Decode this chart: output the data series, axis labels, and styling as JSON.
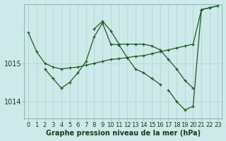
{
  "bg_color": "#cee9e9",
  "line_color": "#1a5c1a",
  "grid_color": "#b0d0d0",
  "title": "Graphe pression niveau de la mer (hPa)",
  "tick_fontsize": 6,
  "title_fontsize": 7,
  "xmin": -0.5,
  "xmax": 23.5,
  "ymin": 1013.55,
  "ymax": 1016.55,
  "yticks": [
    1014,
    1015
  ],
  "xticks": [
    0,
    1,
    2,
    3,
    4,
    5,
    6,
    7,
    8,
    9,
    10,
    11,
    12,
    13,
    14,
    15,
    16,
    17,
    18,
    19,
    20,
    21,
    22,
    23
  ],
  "lineA_x": [
    0,
    1,
    2,
    3,
    4,
    5,
    6,
    7,
    8,
    9,
    10,
    11,
    12,
    13,
    14,
    15,
    16,
    17,
    18,
    19,
    20,
    21,
    22,
    23
  ],
  "lineA_y": [
    1015.8,
    1015.3,
    1015.0,
    1014.9,
    1014.85,
    1014.88,
    1014.9,
    1014.95,
    1015.0,
    1015.05,
    1015.1,
    1015.12,
    1015.15,
    1015.18,
    1015.2,
    1015.25,
    1015.3,
    1015.35,
    1015.4,
    1015.45,
    1015.5,
    1016.4,
    1016.45,
    1016.5
  ],
  "lineB_x": [
    2,
    3,
    4,
    5,
    6,
    7,
    8,
    9,
    10,
    11,
    12,
    13,
    14,
    15,
    16
  ],
  "lineB_y": [
    1014.85,
    1014.6,
    1014.35,
    1014.5,
    1014.75,
    1015.05,
    1015.7,
    1016.05,
    1015.5,
    1015.48,
    1015.15,
    1014.85,
    1014.75,
    1014.6,
    1014.45
  ],
  "lineC_x": [
    8,
    9,
    10,
    11,
    12,
    13,
    14,
    15,
    16,
    17,
    18,
    19,
    20
  ],
  "lineC_y": [
    1015.9,
    1016.1,
    1015.85,
    1015.5,
    1015.5,
    1015.5,
    1015.5,
    1015.45,
    1015.35,
    1015.1,
    1014.85,
    1014.55,
    1014.35
  ],
  "lineD_x": [
    17,
    18,
    19,
    20,
    21,
    22,
    23
  ],
  "lineD_y": [
    1014.3,
    1014.0,
    1013.78,
    1013.88,
    1016.4,
    1016.45,
    1016.5
  ]
}
